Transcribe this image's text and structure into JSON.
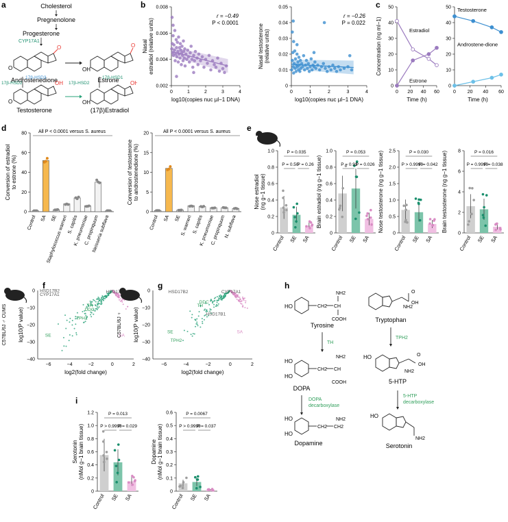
{
  "labels": {
    "a": "a",
    "b": "b",
    "c": "c",
    "d": "d",
    "e": "e",
    "f": "f",
    "g": "g",
    "h": "h",
    "i": "i"
  },
  "colors": {
    "purple": "#9b7bbf",
    "blue": "#3d8fd0",
    "lightblue": "#6cc0e8",
    "orange": "#f6b84e",
    "green": "#1a8f6d",
    "pink": "#d98cc4",
    "grey": "#9e9e9e",
    "teal": "#2aa37a",
    "red": "#e8312a",
    "darkgreen": "#2f9e5a"
  },
  "panel_a": {
    "cholesterol": "Cholesterol",
    "pregnenolone": "Pregnenolone",
    "progesterone": "Progesterone",
    "cyp17a1": "CYP17A1",
    "androstenedione": "Androstenedione",
    "estrone": "Estrone",
    "hsd2_left": "17β-HSD2",
    "hsd3": "17β-HSD3",
    "hsd2_mid": "17β-HSD2",
    "hsd1": "17β-HSD1",
    "testosterone": "Testosterone",
    "estradiol": "(17β)Estradiol",
    "oh": "OH",
    "o": "O"
  },
  "chart_data": [
    {
      "id": "b1",
      "type": "scatter",
      "ylabel": "Nasal estradiol (relative units)",
      "xlabel": "log10(copies nuc µl−1 DNA)",
      "xlim": [
        0,
        4
      ],
      "ylim": [
        0.002,
        0.008
      ],
      "xticks": [
        "0",
        "1",
        "2",
        "3",
        "4"
      ],
      "yticks": [
        "0.002",
        "0.004",
        "0.006",
        "0.008"
      ],
      "annotation_r": "r = −0.49",
      "annotation_p": "P < 0.0001",
      "fit": {
        "x": [
          0,
          3.3
        ],
        "y": [
          0.0046,
          0.0035
        ]
      },
      "points": [
        [
          0.02,
          0.0048
        ],
        [
          0.05,
          0.0052
        ],
        [
          0.08,
          0.0045
        ],
        [
          0.1,
          0.0058
        ],
        [
          0.12,
          0.0043
        ],
        [
          0.15,
          0.0051
        ],
        [
          0.18,
          0.0047
        ],
        [
          0.2,
          0.0062
        ],
        [
          0.22,
          0.0039
        ],
        [
          0.25,
          0.0044
        ],
        [
          0.28,
          0.0055
        ],
        [
          0.3,
          0.0049
        ],
        [
          0.32,
          0.0042
        ],
        [
          0.35,
          0.0053
        ],
        [
          0.38,
          0.0046
        ],
        [
          0.4,
          0.0038
        ],
        [
          0.42,
          0.0057
        ],
        [
          0.45,
          0.0044
        ],
        [
          0.48,
          0.0049
        ],
        [
          0.5,
          0.0041
        ],
        [
          0.52,
          0.0052
        ],
        [
          0.55,
          0.0047
        ],
        [
          0.58,
          0.0036
        ],
        [
          0.6,
          0.0045
        ],
        [
          0.62,
          0.005
        ],
        [
          0.65,
          0.0043
        ],
        [
          0.68,
          0.0039
        ],
        [
          0.7,
          0.0054
        ],
        [
          0.72,
          0.0046
        ],
        [
          0.75,
          0.0041
        ],
        [
          0.78,
          0.0048
        ],
        [
          0.8,
          0.0035
        ],
        [
          0.85,
          0.0044
        ],
        [
          0.9,
          0.004
        ],
        [
          0.95,
          0.0047
        ],
        [
          1.0,
          0.0042
        ],
        [
          1.05,
          0.0038
        ],
        [
          1.1,
          0.0045
        ],
        [
          1.15,
          0.005
        ],
        [
          1.2,
          0.004
        ],
        [
          1.25,
          0.0034
        ],
        [
          1.3,
          0.0043
        ],
        [
          1.35,
          0.0039
        ],
        [
          1.4,
          0.0046
        ],
        [
          1.5,
          0.0041
        ],
        [
          1.55,
          0.0036
        ],
        [
          1.6,
          0.0044
        ],
        [
          1.7,
          0.0039
        ],
        [
          1.8,
          0.0042
        ],
        [
          1.9,
          0.0034
        ],
        [
          2.0,
          0.004
        ],
        [
          2.1,
          0.0037
        ],
        [
          2.2,
          0.0043
        ],
        [
          2.3,
          0.0032
        ],
        [
          2.4,
          0.0039
        ],
        [
          2.5,
          0.0036
        ],
        [
          2.6,
          0.0034
        ],
        [
          2.7,
          0.0041
        ],
        [
          2.8,
          0.0031
        ],
        [
          2.9,
          0.0037
        ],
        [
          3.0,
          0.0033
        ],
        [
          3.1,
          0.003
        ],
        [
          3.2,
          0.0035
        ],
        [
          0.04,
          0.0072
        ],
        [
          0.3,
          0.0027
        ],
        [
          1.3,
          0.003
        ],
        [
          0.1,
          0.0066
        ]
      ]
    },
    {
      "id": "b2",
      "type": "scatter",
      "ylabel": "Nasal testosterone (relative units)",
      "xlabel": "log10(copies nuc µl−1 DNA)",
      "xlim": [
        0,
        4
      ],
      "ylim": [
        0,
        0.05
      ],
      "xticks": [
        "0",
        "1",
        "2",
        "3",
        "4"
      ],
      "yticks": [
        "0",
        "0.01",
        "0.02",
        "0.03",
        "0.04",
        "0.05"
      ],
      "annotation_r": "r = −0.26",
      "annotation_p": "P = 0.022",
      "fit": {
        "x": [
          0,
          3.3
        ],
        "y": [
          0.0135,
          0.0115
        ]
      },
      "points": [
        [
          0.02,
          0.01
        ],
        [
          0.05,
          0.016
        ],
        [
          0.08,
          0.021
        ],
        [
          0.1,
          0.012
        ],
        [
          0.12,
          0.008
        ],
        [
          0.15,
          0.014
        ],
        [
          0.18,
          0.022
        ],
        [
          0.2,
          0.011
        ],
        [
          0.22,
          0.017
        ],
        [
          0.25,
          0.009
        ],
        [
          0.28,
          0.013
        ],
        [
          0.3,
          0.02
        ],
        [
          0.32,
          0.012
        ],
        [
          0.35,
          0.015
        ],
        [
          0.38,
          0.01
        ],
        [
          0.4,
          0.018
        ],
        [
          0.42,
          0.013
        ],
        [
          0.45,
          0.009
        ],
        [
          0.48,
          0.016
        ],
        [
          0.5,
          0.011
        ],
        [
          0.55,
          0.014
        ],
        [
          0.6,
          0.012
        ],
        [
          0.65,
          0.019
        ],
        [
          0.7,
          0.01
        ],
        [
          0.75,
          0.013
        ],
        [
          0.8,
          0.016
        ],
        [
          0.85,
          0.011
        ],
        [
          0.9,
          0.014
        ],
        [
          0.95,
          0.009
        ],
        [
          1.0,
          0.012
        ],
        [
          1.05,
          0.017
        ],
        [
          1.1,
          0.01
        ],
        [
          1.15,
          0.013
        ],
        [
          1.2,
          0.012
        ],
        [
          1.25,
          0.015
        ],
        [
          1.3,
          0.011
        ],
        [
          1.4,
          0.013
        ],
        [
          1.5,
          0.01
        ],
        [
          1.6,
          0.012
        ],
        [
          1.7,
          0.014
        ],
        [
          1.75,
          0.04
        ],
        [
          1.8,
          0.011
        ],
        [
          1.9,
          0.009
        ],
        [
          2.0,
          0.012
        ],
        [
          2.1,
          0.01
        ],
        [
          2.2,
          0.013
        ],
        [
          2.3,
          0.011
        ],
        [
          2.4,
          0.009
        ],
        [
          2.5,
          0.012
        ],
        [
          2.6,
          0.01
        ],
        [
          2.8,
          0.011
        ],
        [
          3.0,
          0.012
        ],
        [
          3.1,
          0.019
        ],
        [
          3.2,
          0.01
        ],
        [
          0.05,
          0.034
        ],
        [
          0.1,
          0.041
        ],
        [
          0.12,
          0.028
        ],
        [
          0.3,
          0.026
        ],
        [
          1.2,
          0.021
        ]
      ]
    },
    {
      "id": "c1",
      "type": "line",
      "ylabel": "Concentration (ng ml−1)",
      "xlabel": "Time (h)",
      "xlim": [
        0,
        60
      ],
      "ylim": [
        0,
        50
      ],
      "xticks": [
        "0",
        "20",
        "40",
        "60"
      ],
      "yticks": [
        "0",
        "10",
        "20",
        "30",
        "40",
        "50"
      ],
      "series": [
        {
          "name": "Estradiol",
          "x": [
            0,
            24,
            48,
            60
          ],
          "y": [
            41,
            23,
            17,
            13
          ]
        },
        {
          "name": "Estrone",
          "x": [
            0,
            24,
            48,
            60
          ],
          "y": [
            0,
            16,
            20,
            24
          ]
        }
      ]
    },
    {
      "id": "c2",
      "type": "line",
      "xlabel": "Time (h)",
      "xlim": [
        0,
        60
      ],
      "ylim": [
        0,
        50
      ],
      "xticks": [
        "0",
        "20",
        "40",
        "60"
      ],
      "yticks": [
        "0",
        "10",
        "20",
        "30",
        "40",
        "50"
      ],
      "series": [
        {
          "name": "Testosterone",
          "x": [
            0,
            24,
            48,
            60
          ],
          "y": [
            44,
            41,
            37,
            34
          ]
        },
        {
          "name": "Androstene-dione",
          "x": [
            0,
            24,
            48,
            60
          ],
          "y": [
            0,
            2.5,
            5,
            7
          ]
        }
      ]
    },
    {
      "id": "d1",
      "type": "bar",
      "ylabel": "Conversion of estradiol to estrone (%)",
      "ylim": [
        0,
        80
      ],
      "yticks": [
        "0",
        "20",
        "40",
        "60",
        "80"
      ],
      "categories": [
        "Control",
        "SA",
        "SE",
        "Staphylococcus warneri",
        "S. capitis",
        "K. pneumoniae",
        "C. propinquum",
        "Neisseria subflava"
      ],
      "values": [
        1,
        52,
        2,
        8,
        14,
        6,
        30,
        1
      ],
      "highlight": "SA",
      "annotation": "All P < 0.0001 versus S. aureus"
    },
    {
      "id": "d2",
      "type": "bar",
      "ylabel": "Conversion of testosterone to androstenedione (%)",
      "ylim": [
        0,
        20
      ],
      "yticks": [
        "0",
        "5",
        "10",
        "15",
        "20"
      ],
      "categories": [
        "Control",
        "SA",
        "SE",
        "S. warneri",
        "S. capitis",
        "K. pneumoniae",
        "C. propinquum",
        "N. subflava"
      ],
      "values": [
        0.3,
        11,
        0.4,
        1.5,
        1.3,
        1.0,
        1.0,
        0.8
      ],
      "highlight": "SA",
      "annotation": "All P < 0.0001 versus S. aureus"
    },
    {
      "id": "e1",
      "type": "bar",
      "ylabel": "Nose estradiol (ng g−1 tissue)",
      "ylim": [
        0,
        1.0
      ],
      "yticks": [
        "0",
        "0.2",
        "0.4",
        "0.6",
        "0.8",
        "1.0"
      ],
      "categories": [
        "Control",
        "SE",
        "SA"
      ],
      "values": [
        0.31,
        0.22,
        0.09
      ],
      "pvals": {
        "top": "P = 0.035",
        "a": "P = 0.50",
        "b": "P = 0.26"
      }
    },
    {
      "id": "e2",
      "type": "bar",
      "ylabel": "Brain estradiol (ng g−1 tissue)",
      "ylim": [
        0,
        1.0
      ],
      "yticks": [
        "0",
        "0.2",
        "0.4",
        "0.6",
        "0.8",
        "1.0"
      ],
      "categories": [
        "Control",
        "SE",
        "SA"
      ],
      "values": [
        0.48,
        0.54,
        0.17
      ],
      "pvals": {
        "top": "P = 0.053",
        "a": "P = 0.93",
        "b": "P = 0.026"
      }
    },
    {
      "id": "e3",
      "type": "bar",
      "ylabel": "Nose testosterone (ng g−1 tissue)",
      "ylim": [
        0,
        2.5
      ],
      "yticks": [
        "0",
        "0.5",
        "1.0",
        "1.5",
        "2.0",
        "2.5"
      ],
      "categories": [
        "Control",
        "SE",
        "SA"
      ],
      "values": [
        0.7,
        0.63,
        0.27
      ],
      "pvals": {
        "top": "P = 0.030",
        "a": "P > 0.9999",
        "b": "P = 0.042"
      }
    },
    {
      "id": "e4",
      "type": "bar",
      "ylabel": "Brain testosterone (ng g−1 tissue)",
      "ylim": [
        0,
        8
      ],
      "yticks": [
        "0",
        "2",
        "4",
        "6",
        "8"
      ],
      "categories": [
        "Control",
        "SE",
        "SA"
      ],
      "values": [
        2.6,
        2.3,
        0.6
      ],
      "pvals": {
        "top": "P = 0.016",
        "a": "P = 0.9999",
        "b": "P = 0.038"
      }
    },
    {
      "id": "f",
      "type": "scatter",
      "title": "C57BL/6J ♂ CUMS",
      "ylabel": "log10(P value)",
      "xlabel": "log2(fold change)",
      "xlim": [
        -7,
        2
      ],
      "ylim": [
        -40,
        0
      ],
      "xticks": [
        "−6",
        "−4",
        "−2",
        "0",
        "2"
      ],
      "yticks": [
        "0",
        "−10",
        "−20",
        "−30",
        "−40"
      ],
      "genes": [
        "SE",
        "SA",
        "TPH2",
        "DDC",
        "TH",
        "CYP17A1",
        "HSD17B2",
        "HSD17B1"
      ]
    },
    {
      "id": "g",
      "type": "scatter",
      "title": "C57BL/6J ♀",
      "ylabel": "log10(P value)",
      "xlabel": "log2(fold change)",
      "xlim": [
        -7,
        2
      ],
      "ylim": [
        -40,
        0
      ],
      "xticks": [
        "−6",
        "−4",
        "−2",
        "0",
        "2"
      ],
      "yticks": [
        "0",
        "−10",
        "−20",
        "−30",
        "−40"
      ],
      "genes": [
        "TPH2",
        "SE",
        "SA",
        "HSD17B1",
        "TH",
        "DDC",
        "HSD17B2",
        "CYP17A1"
      ]
    },
    {
      "id": "i1",
      "type": "bar",
      "ylabel": "Serotonin (nMol g−1 brain tissue)",
      "ylim": [
        0,
        1.2
      ],
      "yticks": [
        "0",
        "0.2",
        "0.4",
        "0.6",
        "0.8",
        "1.0",
        "1.2"
      ],
      "categories": [
        "Control",
        "SE",
        "SA"
      ],
      "values": [
        0.55,
        0.44,
        0.15
      ],
      "pvals": {
        "top": "P = 0.013",
        "a": "P > 0.9999",
        "b": "P = 0.029"
      }
    },
    {
      "id": "i2",
      "type": "bar",
      "ylabel": "Dopamine (nMol g−1 brain tissue)",
      "ylim": [
        0,
        0.6
      ],
      "yticks": [
        "0",
        "0.1",
        "0.2",
        "0.3",
        "0.4",
        "0.5",
        "0.6"
      ],
      "categories": [
        "Control",
        "SE",
        "SA"
      ],
      "values": [
        0.06,
        0.07,
        0.01
      ],
      "pvals": {
        "top": "P = 0.0067",
        "a": "P > 0.9999",
        "b": "P = 0.037"
      }
    }
  ],
  "panel_h": {
    "tyrosine": "Tyrosine",
    "tryptophan": "Tryptophan",
    "th": "TH",
    "tph2": "TPH2",
    "dopa": "DOPA",
    "htp": "5-HTP",
    "dopa_dec1": "DOPA",
    "dopa_dec2": "decarboxylase",
    "htp_dec1": "5-HTP",
    "htp_dec2": "decarboxylase",
    "dopamine": "Dopamine",
    "serotonin": "Serotonin",
    "nh2": "NH2",
    "cooh": "COOH",
    "ho": "HO",
    "ch2": "CH2",
    "ch": "CH",
    "oh": "OH",
    "o": "O"
  }
}
